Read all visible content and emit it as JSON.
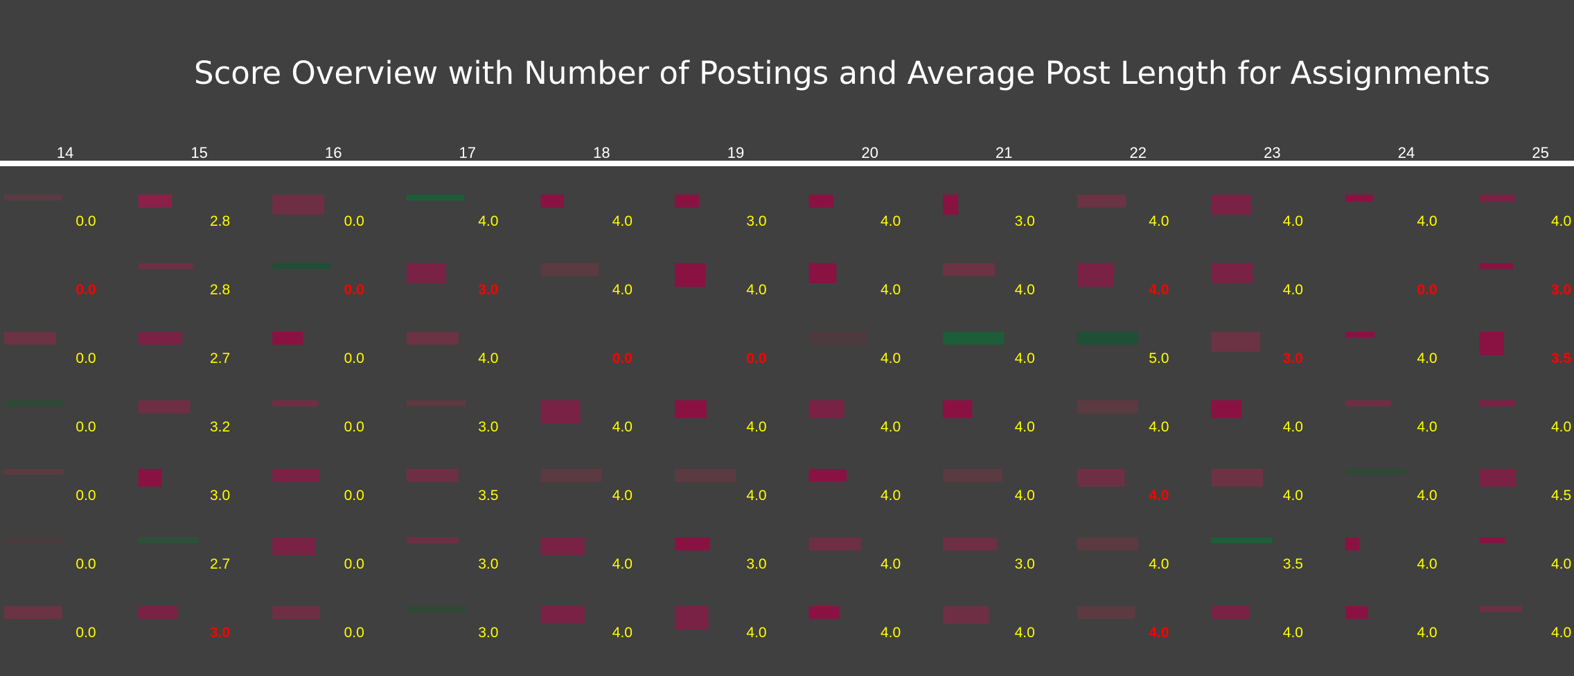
{
  "chart_data": {
    "type": "heatmap",
    "title": "Score Overview with Number of Postings and Average Post Length for Assignments",
    "columns": [
      "14",
      "15",
      "16",
      "17",
      "18",
      "19",
      "20",
      "21",
      "22",
      "23",
      "24",
      "25"
    ],
    "rows": [
      {
        "scores": [
          "0.0",
          "2.8",
          "0.0",
          "4.0",
          "4.0",
          "3.0",
          "4.0",
          "3.0",
          "4.0",
          "4.0",
          "4.0",
          "4.0"
        ],
        "highlight": [
          false,
          false,
          false,
          false,
          false,
          false,
          false,
          false,
          false,
          false,
          false,
          false
        ],
        "bar_width": [
          0.95,
          0.55,
          0.85,
          0.95,
          0.38,
          0.4,
          0.4,
          0.25,
          0.8,
          0.65,
          0.45,
          0.58
        ],
        "bar_height": [
          0.25,
          0.55,
          0.85,
          0.25,
          0.55,
          0.55,
          0.55,
          0.85,
          0.55,
          0.85,
          0.3,
          0.3
        ],
        "bar_color": [
          "#5c3a42",
          "#8b2148",
          "#6e2f44",
          "#1b5e38",
          "#8a1242",
          "#8a1242",
          "#8a1242",
          "#8a1242",
          "#6b3344",
          "#7a2245",
          "#8a1242",
          "#7a2245"
        ]
      },
      {
        "scores": [
          "0.0",
          "2.8",
          "0.0",
          "3.0",
          "4.0",
          "4.0",
          "4.0",
          "4.0",
          "4.0",
          "4.0",
          "0.0",
          "3.0"
        ],
        "highlight": [
          true,
          false,
          true,
          true,
          false,
          false,
          false,
          false,
          true,
          false,
          true,
          true
        ],
        "bar_width": [
          0,
          0.9,
          0.95,
          0.65,
          0.95,
          0.5,
          0.45,
          0.85,
          0.6,
          0.68,
          0,
          0.55
        ],
        "bar_height": [
          0,
          0.25,
          0.25,
          0.85,
          0.55,
          1.0,
          0.85,
          0.55,
          1.0,
          0.85,
          0,
          0.25
        ],
        "bar_color": [
          "#404040",
          "#6e2f44",
          "#1f4f35",
          "#7a2245",
          "#5c3a42",
          "#8a1242",
          "#8a1242",
          "#6b3344",
          "#7a2245",
          "#7a2245",
          "#404040",
          "#8a1242"
        ]
      },
      {
        "scores": [
          "0.0",
          "2.7",
          "0.0",
          "4.0",
          "0.0",
          "0.0",
          "4.0",
          "4.0",
          "5.0",
          "3.0",
          "4.0",
          "3.5"
        ],
        "highlight": [
          false,
          false,
          false,
          false,
          true,
          true,
          false,
          false,
          false,
          true,
          false,
          true
        ],
        "bar_width": [
          0.85,
          0.72,
          0.5,
          0.85,
          0,
          0,
          0.97,
          1.0,
          1.0,
          0.8,
          0.48,
          0.4
        ],
        "bar_height": [
          0.55,
          0.55,
          0.55,
          0.55,
          0,
          0,
          0.55,
          0.55,
          0.55,
          0.85,
          0.25,
          1.0
        ],
        "bar_color": [
          "#6b3344",
          "#7a2245",
          "#8a1242",
          "#6b3344",
          "#404040",
          "#404040",
          "#4e3a3e",
          "#1b5e38",
          "#1f4f35",
          "#6b3344",
          "#8a1242",
          "#8a1242"
        ]
      },
      {
        "scores": [
          "0.0",
          "3.2",
          "0.0",
          "3.0",
          "4.0",
          "4.0",
          "4.0",
          "4.0",
          "4.0",
          "4.0",
          "4.0",
          "4.0"
        ],
        "highlight": [
          false,
          false,
          false,
          false,
          false,
          false,
          false,
          false,
          false,
          false,
          false,
          false
        ],
        "bar_width": [
          0.97,
          0.85,
          0.75,
          0.97,
          0.65,
          0.52,
          0.58,
          0.48,
          1.0,
          0.5,
          0.75,
          0.58
        ],
        "bar_height": [
          0.25,
          0.55,
          0.25,
          0.25,
          1.0,
          0.75,
          0.75,
          0.75,
          0.55,
          0.75,
          0.25,
          0.25
        ],
        "bar_color": [
          "#2e4a36",
          "#6e2f44",
          "#6e2f44",
          "#5c3a42",
          "#7a2245",
          "#8a1242",
          "#7a2245",
          "#8a1242",
          "#5c3a42",
          "#8a1242",
          "#6e2f44",
          "#7a2245"
        ]
      },
      {
        "scores": [
          "0.0",
          "3.0",
          "0.0",
          "3.5",
          "4.0",
          "4.0",
          "4.0",
          "4.0",
          "4.0",
          "4.0",
          "4.0",
          "4.5"
        ],
        "highlight": [
          false,
          false,
          false,
          false,
          false,
          false,
          false,
          false,
          true,
          false,
          false,
          false
        ],
        "bar_width": [
          0.97,
          0.38,
          0.78,
          0.85,
          1.0,
          1.0,
          0.62,
          0.97,
          0.78,
          0.85,
          1.0,
          0.6
        ],
        "bar_height": [
          0.25,
          0.75,
          0.55,
          0.55,
          0.55,
          0.55,
          0.55,
          0.55,
          0.75,
          0.75,
          0.25,
          0.75
        ],
        "bar_color": [
          "#5c3a42",
          "#8a1242",
          "#7a2245",
          "#6e2f44",
          "#5c3a42",
          "#5c3a42",
          "#8a1242",
          "#5c3a42",
          "#6e2f44",
          "#6b3344",
          "#2e4a36",
          "#7a2245"
        ]
      },
      {
        "scores": [
          "0.0",
          "2.7",
          "0.0",
          "3.0",
          "4.0",
          "3.0",
          "4.0",
          "3.0",
          "4.0",
          "3.5",
          "4.0",
          "4.0"
        ],
        "highlight": [
          false,
          false,
          false,
          false,
          false,
          false,
          false,
          false,
          false,
          false,
          false,
          false
        ],
        "bar_width": [
          0.97,
          1.0,
          0.7,
          0.85,
          0.72,
          0.58,
          0.85,
          0.88,
          1.0,
          1.0,
          0.23,
          0.42
        ],
        "bar_height": [
          0.25,
          0.25,
          0.75,
          0.25,
          0.75,
          0.55,
          0.55,
          0.55,
          0.55,
          0.25,
          0.55,
          0.25
        ],
        "bar_color": [
          "#4a3c3e",
          "#2b5238",
          "#7a2245",
          "#6e2f44",
          "#7a2245",
          "#8a1242",
          "#6e2f44",
          "#6e2f44",
          "#5c3a42",
          "#1b5e38",
          "#8a1242",
          "#8a1242"
        ]
      },
      {
        "scores": [
          "0.0",
          "3.0",
          "0.0",
          "3.0",
          "4.0",
          "4.0",
          "4.0",
          "4.0",
          "4.0",
          "4.0",
          "4.0",
          "4.0"
        ],
        "highlight": [
          false,
          true,
          false,
          false,
          false,
          false,
          false,
          false,
          true,
          false,
          false,
          false
        ],
        "bar_width": [
          0.95,
          0.65,
          0.78,
          0.97,
          0.72,
          0.55,
          0.5,
          0.75,
          0.95,
          0.63,
          0.37,
          0.7
        ],
        "bar_height": [
          0.55,
          0.55,
          0.55,
          0.25,
          0.75,
          1.0,
          0.55,
          0.75,
          0.55,
          0.55,
          0.55,
          0.25
        ],
        "bar_color": [
          "#6b3344",
          "#7a2245",
          "#6e2f44",
          "#2e4a36",
          "#7a2245",
          "#7a2245",
          "#8a1242",
          "#6e2f44",
          "#5c3a42",
          "#7a2245",
          "#8a1242",
          "#6e2f44"
        ]
      }
    ],
    "colors": {
      "score": "#ffff00",
      "score_highlight": "#ff0000",
      "header_text": "#ffffff",
      "header_line": "#ffffff",
      "background": "#404040"
    }
  }
}
